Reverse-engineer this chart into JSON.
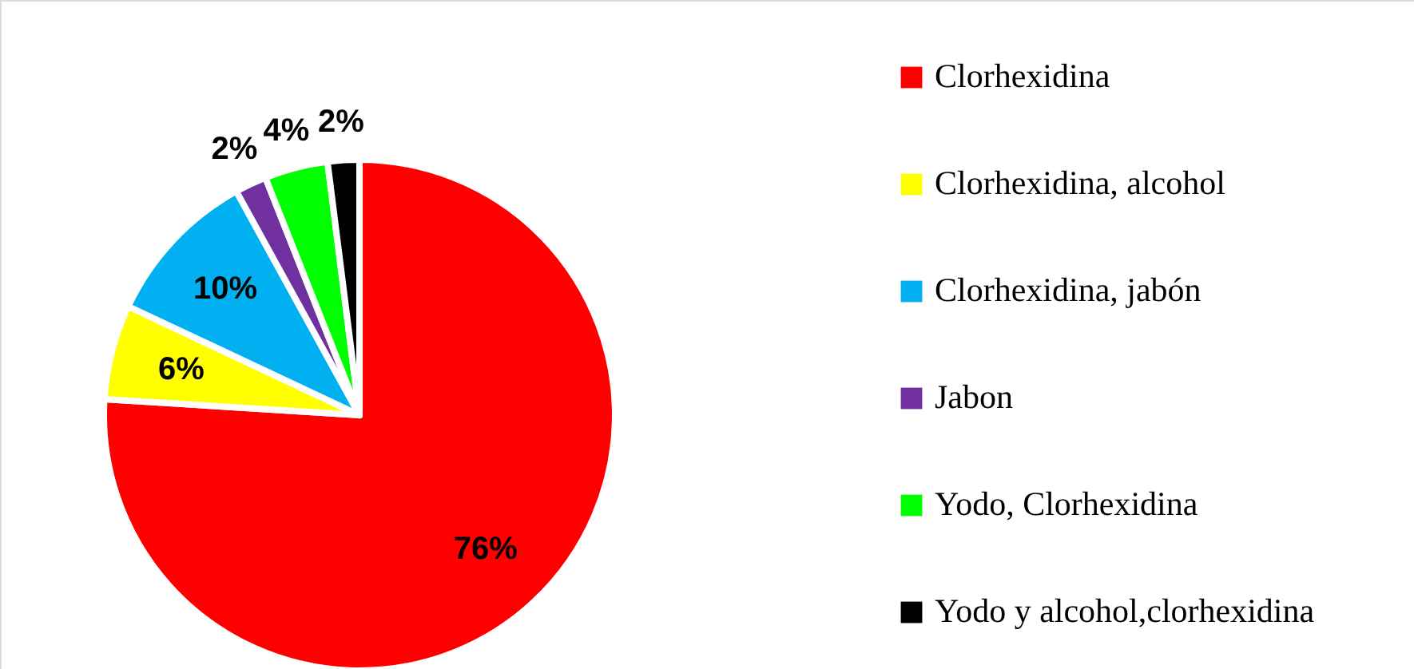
{
  "chart_data": {
    "type": "pie",
    "categories": [
      "Clorhexidina",
      "Clorhexidina, alcohol",
      "Clorhexidina, jabón",
      "Jabon",
      "Yodo, Clorhexidina",
      "Yodo y alcohol,clorhexidina"
    ],
    "values": [
      76,
      6,
      10,
      2,
      4,
      2
    ],
    "value_labels": [
      "76%",
      "6%",
      "10%",
      "2%",
      "4%",
      "2%"
    ],
    "colors": [
      "#ff0000",
      "#ffff00",
      "#00b0f0",
      "#7030a0",
      "#00ff00",
      "#000000"
    ],
    "legend": "right"
  }
}
